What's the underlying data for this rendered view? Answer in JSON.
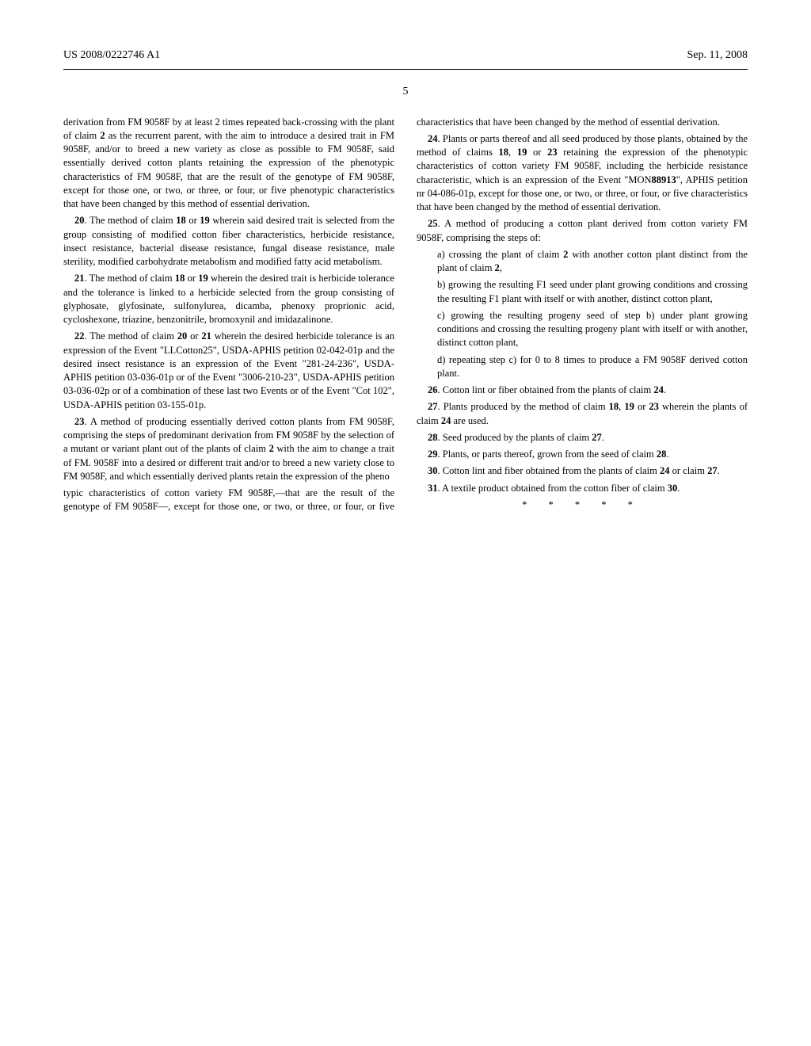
{
  "header": {
    "pub_number": "US 2008/0222746 A1",
    "pub_date": "Sep. 11, 2008"
  },
  "page_number": "5",
  "left_column": {
    "p19_cont": "derivation from FM 9058F by at least 2 times repeated back-crossing with the plant of claim ",
    "p19_bold_a": "2",
    "p19_cont2": " as the recurrent parent, with the aim to introduce a desired trait in FM 9058F, and/or to breed a new variety as close as possible to FM 9058F, said essentially derived cotton plants retaining the expression of the phenotypic characteristics of FM 9058F, that are the result of the genotype of FM 9058F, except for those one, or two, or three, or four, or five phenotypic characteristics that have been changed by this method of essential derivation.",
    "p20": "20",
    "p20_text_a": ". The method of claim ",
    "p20_b1": "18",
    "p20_or1": " or ",
    "p20_b2": "19",
    "p20_text_b": " wherein said desired trait is selected from the group consisting of modified cotton fiber characteristics, herbicide resistance, insect resistance, bacterial disease resistance, fungal disease resistance, male sterility, modified carbohydrate metabolism and modified fatty acid metabolism.",
    "p21": "21",
    "p21_text_a": ". The method of claim ",
    "p21_b1": "18",
    "p21_or1": " or ",
    "p21_b2": "19",
    "p21_text_b": " wherein the desired trait is herbicide tolerance and the tolerance is linked to a herbicide selected from the group consisting of glyphosate, glyfosinate, sulfonylurea, dicamba, phenoxy proprionic acid, cycloshexone, triazine, benzonitrile, bromoxynil and imidazalinone.",
    "p22": "22",
    "p22_text_a": ". The method of claim ",
    "p22_b1": "20",
    "p22_or1": " or ",
    "p22_b2": "21",
    "p22_text_b": " wherein the desired herbicide tolerance is an expression of the Event \"LLCotton25\", USDA-APHIS petition 02-042-01p and the desired insect resistance is an expression of the Event \"281-24-236\", USDA-APHIS petition 03-036-01p or of the Event \"3006-210-23\", USDA-APHIS petition 03-036-02p or of a combination of these last two Events or of the Event \"Cot 102\", USDA-APHIS petition 03-155-01p.",
    "p23": "23",
    "p23_text_a": ". A method of producing essentially derived cotton plants from FM 9058F, comprising the steps of predominant derivation from FM 9058F by the selection of a mutant or variant plant out of the plants of claim ",
    "p23_b1": "2",
    "p23_text_b": " with the aim to change a trait of FM. 9058F into a desired or different trait and/or to breed a new variety close to FM 9058F, and which essentially derived plants retain the expression of the pheno"
  },
  "right_column": {
    "p23_cont": "typic characteristics of cotton variety FM 9058F,—that are the result of the genotype of FM 9058F—, except for those one, or two, or three, or four, or five characteristics that have been changed by the method of essential derivation.",
    "p24": "24",
    "p24_text_a": ". Plants or parts thereof and all seed produced by those plants, obtained by the method of claims ",
    "p24_b1": "18",
    "p24_c1": ", ",
    "p24_b2": "19",
    "p24_or1": " or ",
    "p24_b3": "23",
    "p24_text_b": " retaining the expression of the phenotypic characteristics of cotton variety FM 9058F, including the herbicide resistance characteristic, which is an expression of the Event \"MON",
    "p24_b4": "88913",
    "p24_text_c": "\", APHIS petition nr 04-086-01p, except for those one, or two, or three, or four, or five characteristics that have been changed by the method of essential derivation.",
    "p25": "25",
    "p25_text_a": ". A method of producing a cotton plant derived from cotton variety FM 9058F, comprising the steps of:",
    "p25a_a": "a) crossing the plant of claim ",
    "p25a_b1": "2",
    "p25a_b": " with another cotton plant distinct from the plant of claim ",
    "p25a_b2": "2",
    "p25a_c": ",",
    "p25b": "b) growing the resulting F1 seed under plant growing conditions and crossing the resulting F1 plant with itself or with another, distinct cotton plant,",
    "p25c": "c) growing the resulting progeny seed of step b) under plant growing conditions and crossing the resulting progeny plant with itself or with another, distinct cotton plant,",
    "p25d": "d) repeating step c) for 0 to 8 times to produce a FM 9058F derived cotton plant.",
    "p26": "26",
    "p26_text_a": ". Cotton lint or fiber obtained from the plants of claim ",
    "p26_b1": "24",
    "p26_text_b": ".",
    "p27": "27",
    "p27_text_a": ". Plants produced by the method of claim ",
    "p27_b1": "18",
    "p27_c1": ", ",
    "p27_b2": "19",
    "p27_or1": " or ",
    "p27_b3": "23",
    "p27_text_b": " wherein the plants of claim ",
    "p27_b4": "24",
    "p27_text_c": " are used.",
    "p28": "28",
    "p28_text_a": ". Seed produced by the plants of claim ",
    "p28_b1": "27",
    "p28_text_b": ".",
    "p29": "29",
    "p29_text_a": ". Plants, or parts thereof, grown from the seed of claim ",
    "p29_b1": "28",
    "p29_text_b": ".",
    "p30": "30",
    "p30_text_a": ". Cotton lint and fiber obtained from the plants of claim ",
    "p30_b1": "24",
    "p30_or1": " or claim ",
    "p30_b2": "27",
    "p30_text_b": ".",
    "p31": "31",
    "p31_text_a": ". A textile product obtained from the cotton fiber of claim ",
    "p31_b1": "30",
    "p31_text_b": ".",
    "end_stars": "* * * * *"
  }
}
